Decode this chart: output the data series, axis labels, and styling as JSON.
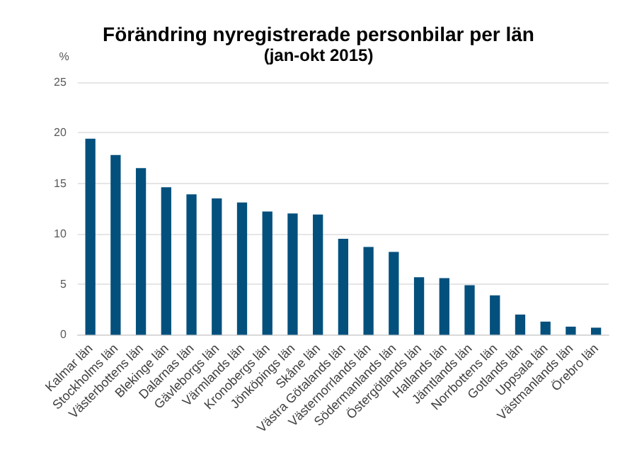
{
  "chart_data": {
    "type": "bar",
    "title": "Förändring nyregistrerade personbilar per län",
    "subtitle": "(jan-okt 2015)",
    "ylabel": "%",
    "categories": [
      "Kalmar län",
      "Stockholms län",
      "Västerbottens län",
      "Blekinge län",
      "Dalarnas län",
      "Gävleborgs län",
      "Värmlands län",
      "Kronobergs län",
      "Jönköpings län",
      "Skåne län",
      "Västra Götalands län",
      "Västernorrlands län",
      "Södermanlands län",
      "Östergötlands län",
      "Hallands län",
      "Jämtlands län",
      "Norrbottens län",
      "Gotlands län",
      "Uppsala län",
      "Västmanlands län",
      "Örebro län"
    ],
    "values": [
      19.4,
      17.8,
      16.5,
      14.6,
      13.9,
      13.5,
      13.1,
      12.2,
      12.0,
      11.9,
      9.5,
      8.7,
      8.2,
      5.7,
      5.6,
      4.9,
      3.9,
      2.0,
      1.3,
      0.8,
      0.7
    ],
    "color": "#03507d",
    "ylim": [
      0,
      25
    ],
    "yticks": [
      0,
      5,
      10,
      15,
      20,
      25
    ],
    "grid": "y"
  }
}
